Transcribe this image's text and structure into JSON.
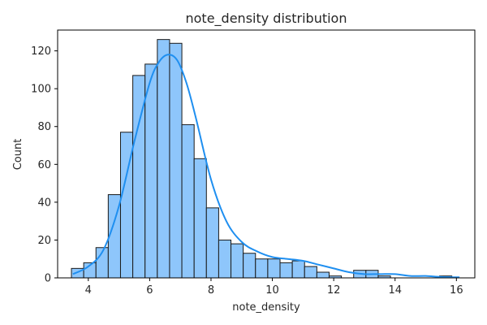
{
  "chart_data": {
    "type": "bar",
    "title": "note_density distribution",
    "xlabel": "note_density",
    "ylabel": "Count",
    "xlim": [
      3.0,
      16.6
    ],
    "ylim": [
      0,
      131
    ],
    "xticks": [
      4,
      6,
      8,
      10,
      12,
      14,
      16
    ],
    "yticks": [
      0,
      20,
      40,
      60,
      80,
      100,
      120
    ],
    "grid": false,
    "bins": {
      "start": 3.45,
      "width": 0.4,
      "counts": [
        5,
        8,
        16,
        44,
        77,
        107,
        113,
        126,
        124,
        81,
        63,
        37,
        20,
        18,
        13,
        10,
        10,
        8,
        9,
        6,
        3,
        1,
        0,
        4,
        4,
        1,
        0,
        0,
        0,
        0,
        1
      ]
    },
    "kde": {
      "x": [
        3.5,
        4.0,
        4.5,
        5.0,
        5.5,
        6.0,
        6.3,
        6.6,
        6.9,
        7.2,
        7.5,
        8.0,
        8.5,
        9.0,
        9.5,
        10.0,
        10.5,
        11.0,
        11.5,
        12.0,
        12.5,
        13.0,
        13.5,
        14.0,
        14.5,
        15.0,
        15.5,
        16.1
      ],
      "y": [
        2,
        6,
        15,
        38,
        72,
        103,
        114,
        118,
        115,
        103,
        85,
        52,
        30,
        19,
        14,
        11,
        10,
        9,
        7,
        5,
        3,
        2,
        2,
        2,
        1,
        1,
        0.5,
        0.3
      ]
    },
    "colors": {
      "bar_fill": "#8ec6fb",
      "bar_edge": "#1a1a1a",
      "kde_line": "#1f8ff0"
    }
  }
}
